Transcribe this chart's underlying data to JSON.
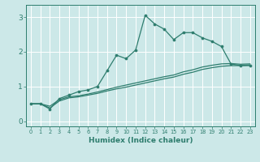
{
  "xlabel": "Humidex (Indice chaleur)",
  "ylabel": "",
  "bg_color": "#cce8e8",
  "grid_color": "#ffffff",
  "line_color": "#2e7d6e",
  "xlim": [
    -0.5,
    23.5
  ],
  "ylim": [
    -0.15,
    3.35
  ],
  "xticks": [
    0,
    1,
    2,
    3,
    4,
    5,
    6,
    7,
    8,
    9,
    10,
    11,
    12,
    13,
    14,
    15,
    16,
    17,
    18,
    19,
    20,
    21,
    22,
    23
  ],
  "yticks": [
    0,
    1,
    2,
    3
  ],
  "line1_y": [
    0.5,
    0.5,
    0.35,
    0.65,
    0.75,
    0.85,
    0.9,
    1.0,
    1.45,
    1.9,
    1.8,
    2.05,
    3.05,
    2.8,
    2.65,
    2.35,
    2.55,
    2.55,
    2.4,
    2.3,
    2.15,
    1.65,
    1.6,
    1.6
  ],
  "line2_y": [
    0.5,
    0.5,
    0.38,
    0.58,
    0.67,
    0.7,
    0.75,
    0.8,
    0.87,
    0.93,
    0.98,
    1.04,
    1.1,
    1.16,
    1.22,
    1.27,
    1.35,
    1.41,
    1.49,
    1.54,
    1.58,
    1.6,
    1.6,
    1.62
  ],
  "line3_y": [
    0.5,
    0.5,
    0.43,
    0.62,
    0.7,
    0.73,
    0.78,
    0.84,
    0.91,
    0.98,
    1.04,
    1.1,
    1.16,
    1.22,
    1.28,
    1.33,
    1.42,
    1.48,
    1.56,
    1.61,
    1.65,
    1.66,
    1.64,
    1.65
  ]
}
